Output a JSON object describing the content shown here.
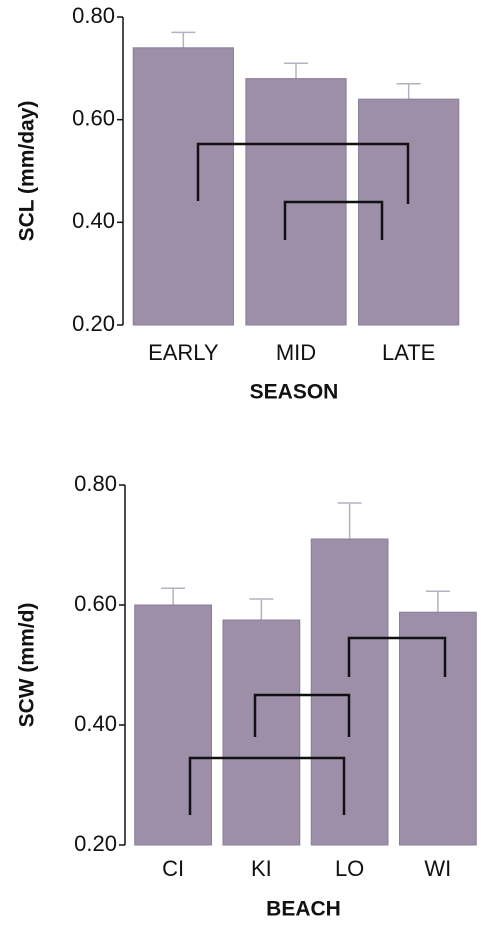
{
  "chart_data": [
    {
      "type": "bar",
      "y_label": "SCL (mm/day)",
      "x_label": "SEASON",
      "categories": [
        "EARLY",
        "MID",
        "LATE"
      ],
      "values": [
        0.74,
        0.68,
        0.64
      ],
      "errors": [
        0.03,
        0.03,
        0.03
      ],
      "color": "#9d8fa8",
      "ylim": [
        0.2,
        0.8
      ],
      "yticks": [
        {
          "value": 0.2,
          "label": "0.20"
        },
        {
          "value": 0.4,
          "label": "0.40"
        },
        {
          "value": 0.6,
          "label": "0.60"
        },
        {
          "value": 0.8,
          "label": "0.80"
        }
      ]
    },
    {
      "type": "bar",
      "y_label": "SCW (mm/d)",
      "x_label": "BEACH",
      "categories": [
        "CI",
        "KI",
        "LO",
        "WI"
      ],
      "values": [
        0.6,
        0.575,
        0.71,
        0.588
      ],
      "errors": [
        0.028,
        0.035,
        0.06,
        0.035
      ],
      "color": "#9d8fa8",
      "ylim": [
        0.2,
        0.8
      ],
      "yticks": [
        {
          "value": 0.2,
          "label": "0.20"
        },
        {
          "value": 0.4,
          "label": "0.40"
        },
        {
          "value": 0.6,
          "label": "0.60"
        },
        {
          "value": 0.8,
          "label": "0.80"
        }
      ]
    }
  ]
}
